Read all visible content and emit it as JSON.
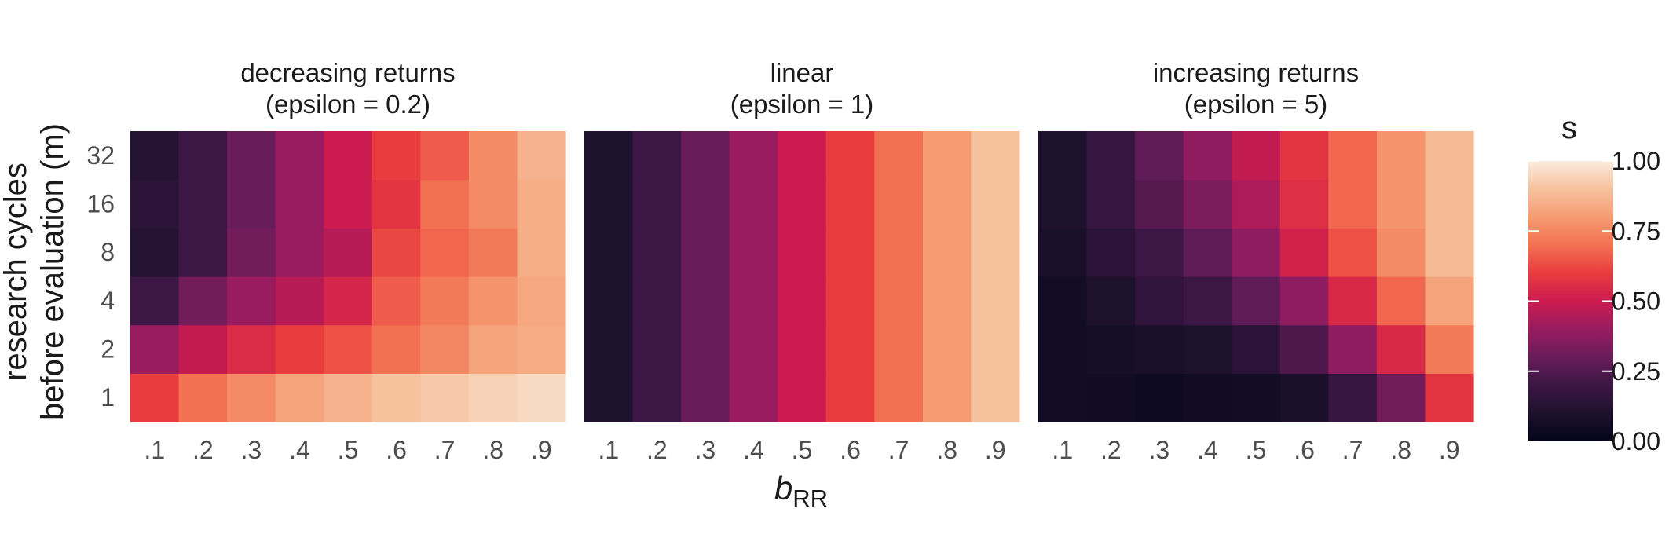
{
  "chart_data": {
    "type": "heatmap",
    "xlabel": "b",
    "xlabel_subscript": "RR",
    "ylabel_lines": [
      "research cycles",
      "before evaluation (m)"
    ],
    "x_categories": [
      ".1",
      ".2",
      ".3",
      ".4",
      ".5",
      ".6",
      ".7",
      ".8",
      ".9"
    ],
    "y_categories": [
      "1",
      "2",
      "4",
      "8",
      "16",
      "32"
    ],
    "legend": {
      "title": "s",
      "range": [
        0,
        1
      ],
      "tick_values": [
        0,
        0.25,
        0.5,
        0.75,
        1
      ],
      "tick_labels": [
        "0.00",
        "0.25",
        "0.50",
        "0.75",
        "1.00"
      ],
      "colormap": "rocket"
    },
    "panels": [
      {
        "title_lines": [
          "decreasing returns",
          "(epsilon = 0.2)"
        ],
        "values": [
          [
            0.6,
            0.7,
            0.76,
            0.82,
            0.86,
            0.9,
            0.92,
            0.94,
            0.96
          ],
          [
            0.4,
            0.48,
            0.55,
            0.6,
            0.64,
            0.7,
            0.75,
            0.82,
            0.84
          ],
          [
            0.2,
            0.32,
            0.4,
            0.46,
            0.53,
            0.66,
            0.72,
            0.78,
            0.83
          ],
          [
            0.12,
            0.2,
            0.32,
            0.4,
            0.46,
            0.62,
            0.68,
            0.72,
            0.85
          ],
          [
            0.14,
            0.2,
            0.3,
            0.4,
            0.5,
            0.58,
            0.7,
            0.76,
            0.85
          ],
          [
            0.12,
            0.2,
            0.3,
            0.4,
            0.5,
            0.6,
            0.66,
            0.76,
            0.86
          ]
        ]
      },
      {
        "title_lines": [
          "linear",
          "(epsilon = 1)"
        ],
        "values": [
          [
            0.1,
            0.2,
            0.3,
            0.4,
            0.5,
            0.6,
            0.7,
            0.8,
            0.9
          ],
          [
            0.1,
            0.2,
            0.3,
            0.4,
            0.5,
            0.6,
            0.7,
            0.8,
            0.9
          ],
          [
            0.1,
            0.2,
            0.3,
            0.4,
            0.5,
            0.6,
            0.7,
            0.8,
            0.9
          ],
          [
            0.1,
            0.2,
            0.3,
            0.4,
            0.5,
            0.6,
            0.7,
            0.8,
            0.9
          ],
          [
            0.1,
            0.2,
            0.3,
            0.4,
            0.5,
            0.6,
            0.7,
            0.8,
            0.9
          ],
          [
            0.1,
            0.2,
            0.3,
            0.4,
            0.5,
            0.6,
            0.7,
            0.8,
            0.9
          ]
        ]
      },
      {
        "title_lines": [
          "increasing returns",
          "(epsilon = 5)"
        ],
        "values": [
          [
            0.06,
            0.05,
            0.04,
            0.05,
            0.06,
            0.08,
            0.18,
            0.32,
            0.58
          ],
          [
            0.06,
            0.07,
            0.08,
            0.1,
            0.14,
            0.24,
            0.38,
            0.54,
            0.72
          ],
          [
            0.06,
            0.1,
            0.16,
            0.2,
            0.28,
            0.38,
            0.54,
            0.68,
            0.82
          ],
          [
            0.08,
            0.14,
            0.2,
            0.28,
            0.38,
            0.52,
            0.64,
            0.76,
            0.88
          ],
          [
            0.1,
            0.18,
            0.26,
            0.34,
            0.44,
            0.56,
            0.68,
            0.78,
            0.88
          ],
          [
            0.1,
            0.18,
            0.28,
            0.38,
            0.48,
            0.58,
            0.68,
            0.78,
            0.88
          ]
        ]
      }
    ]
  }
}
